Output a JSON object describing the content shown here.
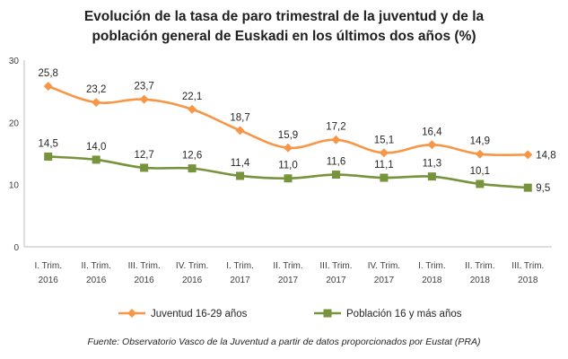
{
  "chart_data": {
    "type": "line",
    "title_line1": "Evolución de la tasa de paro trimestral de la juventud y de la",
    "title_line2": "población general de Euskadi en los últimos dos años (%)",
    "categories": [
      [
        "I. Trim.",
        "2016"
      ],
      [
        "II. Trim.",
        "2016"
      ],
      [
        "III. Trim.",
        "2016"
      ],
      [
        "IV. Trim.",
        "2016"
      ],
      [
        "I. Trim.",
        "2017"
      ],
      [
        "II. Trim.",
        "2017"
      ],
      [
        "III. Trim.",
        "2017"
      ],
      [
        "IV. Trim.",
        "2017"
      ],
      [
        "I. Trim.",
        "2018"
      ],
      [
        "II. Trim.",
        "2018"
      ],
      [
        "III. Trim.",
        "2018"
      ]
    ],
    "yticks": [
      "0",
      "10",
      "20",
      "30"
    ],
    "ylim": [
      0,
      30
    ],
    "grid": false,
    "legend_position": "bottom",
    "series": [
      {
        "name": "Juventud 16-29 años",
        "color": "#f79646",
        "marker": "diamond",
        "values": [
          25.8,
          23.2,
          23.7,
          22.1,
          18.7,
          15.9,
          17.2,
          15.1,
          16.4,
          14.9,
          14.8
        ],
        "labels": [
          "25,8",
          "23,2",
          "23,7",
          "22,1",
          "18,7",
          "15,9",
          "17,2",
          "15,1",
          "16,4",
          "14,9",
          "14,8"
        ]
      },
      {
        "name": "Población 16 y más años",
        "color": "#77933c",
        "marker": "square",
        "values": [
          14.5,
          14.0,
          12.7,
          12.6,
          11.4,
          11.0,
          11.6,
          11.1,
          11.3,
          10.1,
          9.5
        ],
        "labels": [
          "14,5",
          "14,0",
          "12,7",
          "12,6",
          "11,4",
          "11,0",
          "11,6",
          "11,1",
          "11,3",
          "10,1",
          "9,5"
        ]
      }
    ],
    "source": "Fuente: Observatorio Vasco de la Juventud a partir de datos proporcionados por Eustat (PRA)"
  }
}
